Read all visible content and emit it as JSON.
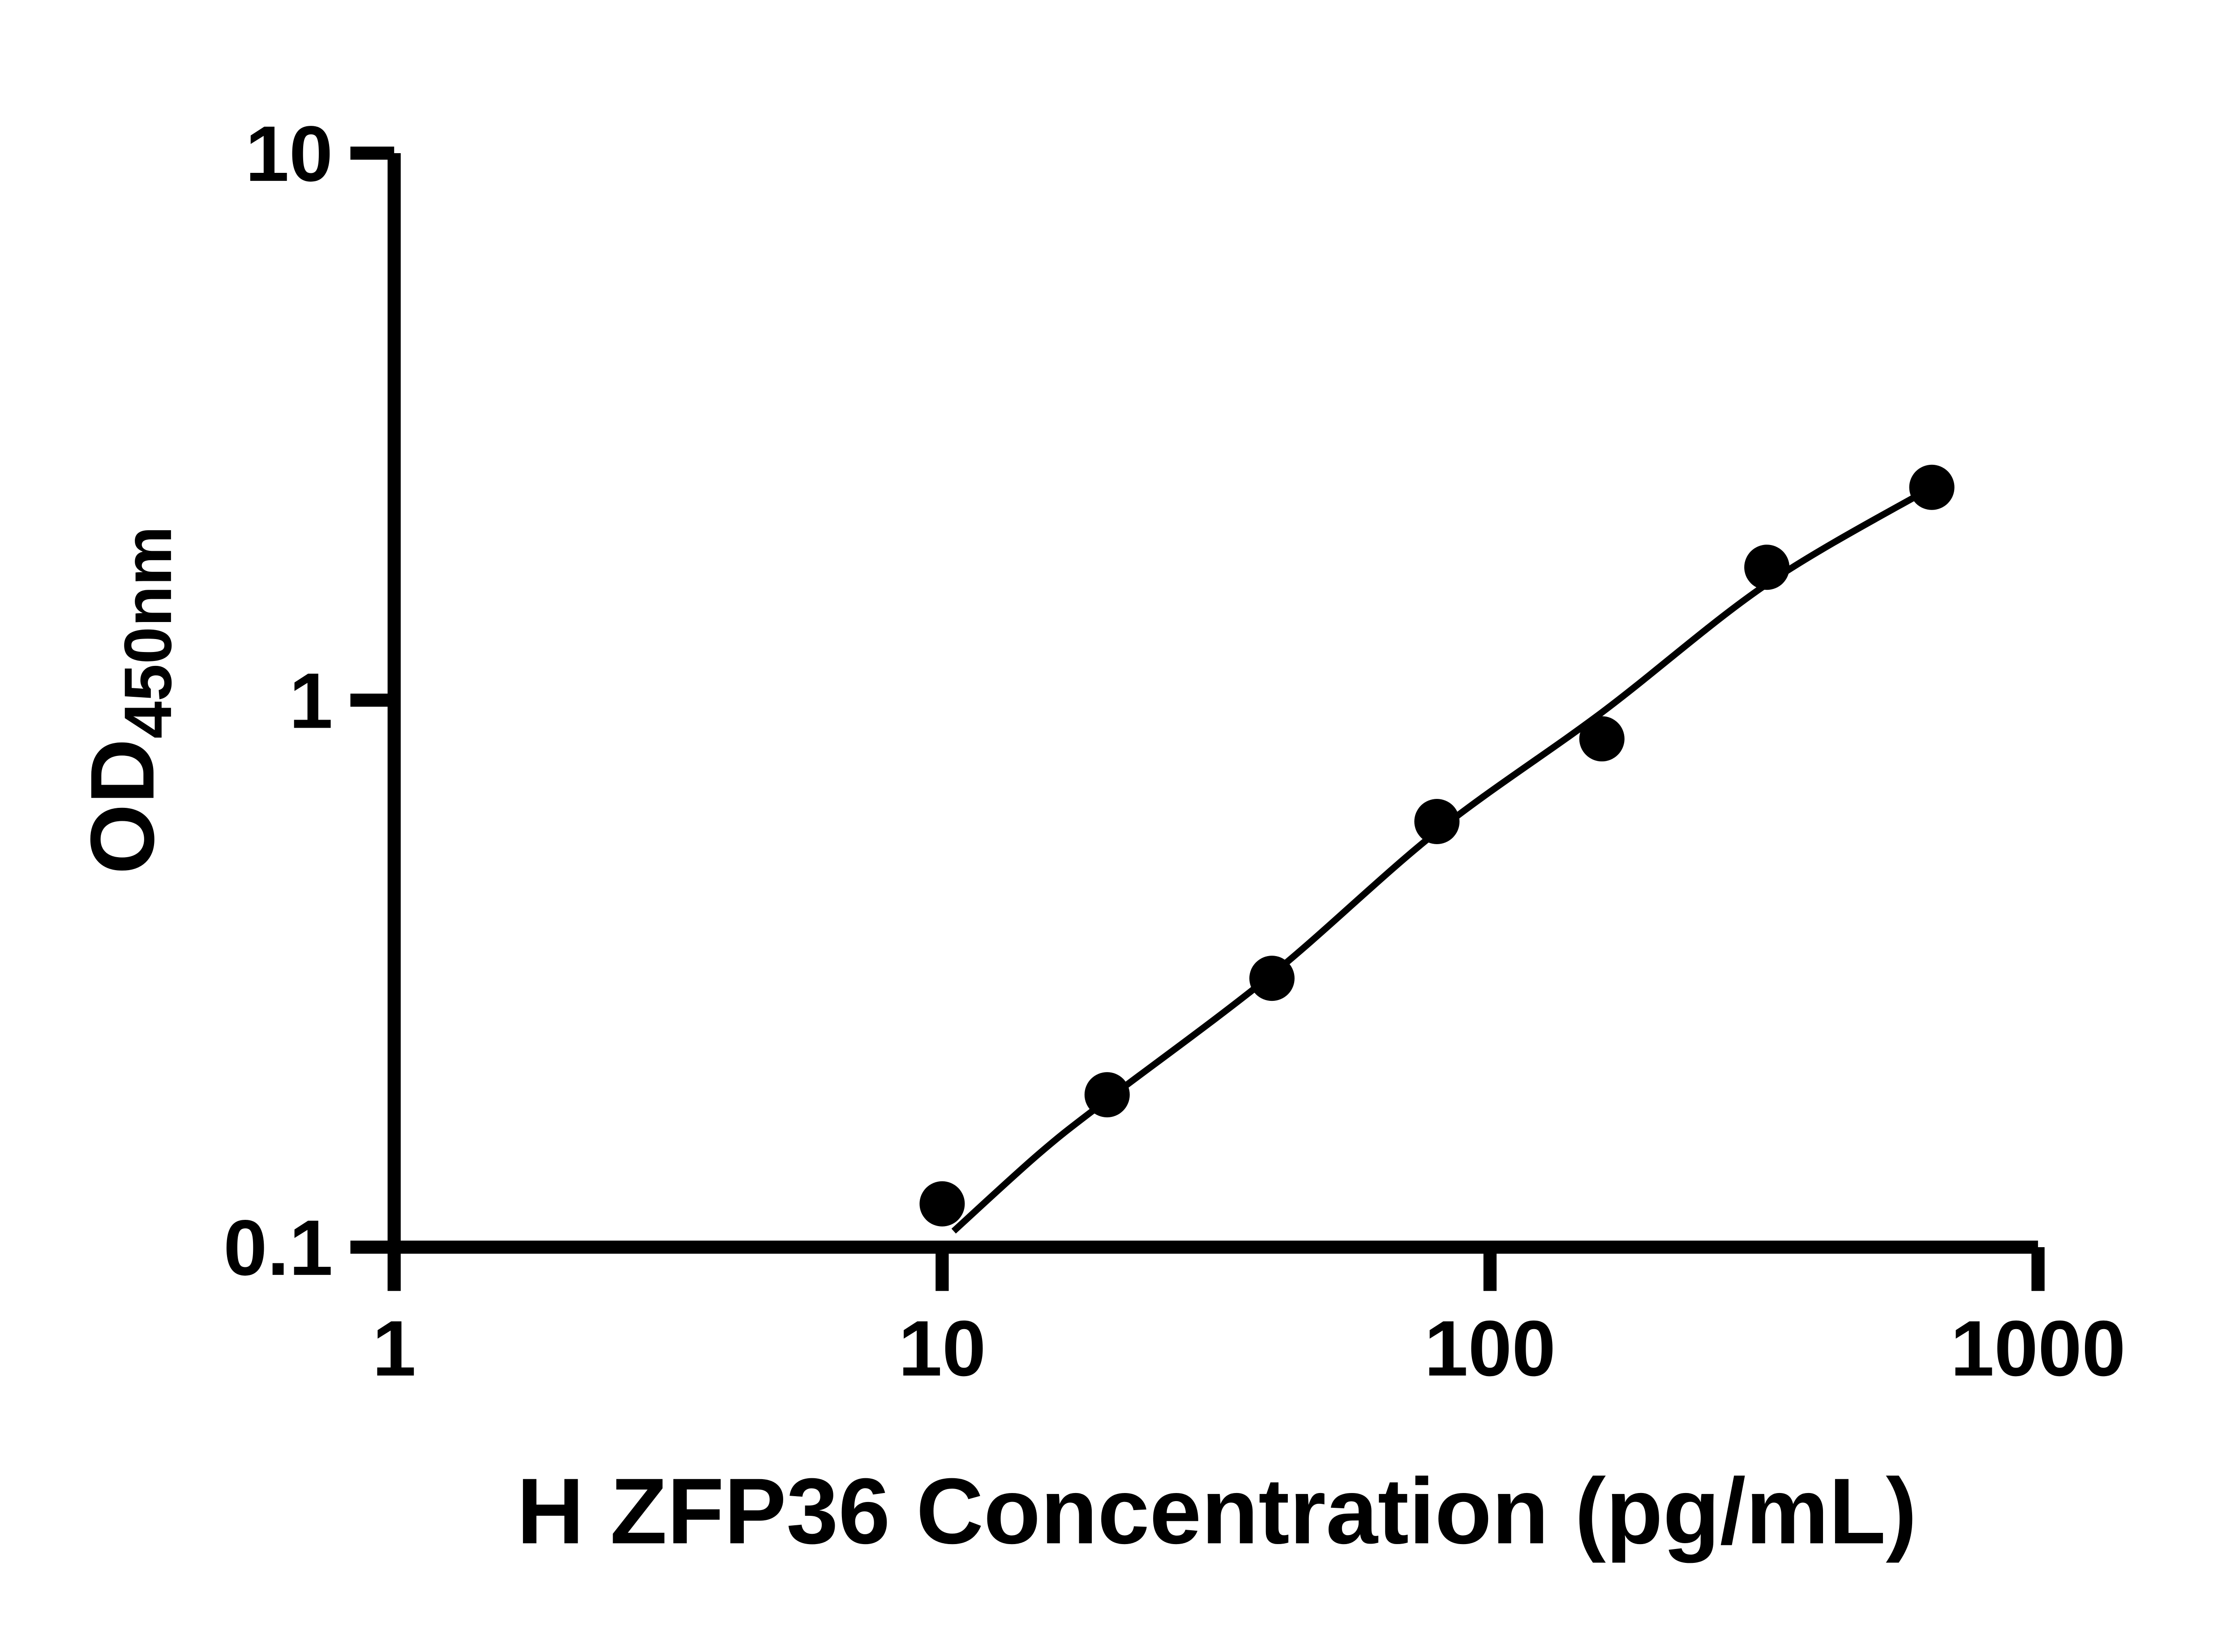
{
  "figure": {
    "background": "#ffffff"
  },
  "chart_data": {
    "type": "scatter",
    "title": "",
    "xlabel": "H ZFP36 Concentration (pg/mL)",
    "ylabel_main": "OD",
    "ylabel_sub": "450nm",
    "x_scale": "log",
    "y_scale": "log",
    "xlim": [
      1,
      1000
    ],
    "ylim": [
      0.1,
      10
    ],
    "x_ticks": [
      1,
      10,
      100,
      1000
    ],
    "x_tick_labels": [
      "1",
      "10",
      "100",
      "1000"
    ],
    "y_ticks": [
      0.1,
      1,
      10
    ],
    "y_tick_labels": [
      "0.1",
      "1",
      "10"
    ],
    "grid": false,
    "legend": "none",
    "marker_color": "#000000",
    "line_color": "#000000",
    "axis_color": "#000000",
    "x": [
      10,
      20,
      40,
      80,
      160,
      320,
      640
    ],
    "y": [
      0.12,
      0.19,
      0.31,
      0.6,
      0.85,
      1.75,
      2.45
    ],
    "fit_curve": {
      "x": [
        10.5,
        15,
        20,
        40,
        80,
        160,
        320,
        640
      ],
      "y": [
        0.107,
        0.148,
        0.186,
        0.315,
        0.575,
        0.95,
        1.63,
        2.45
      ]
    }
  }
}
